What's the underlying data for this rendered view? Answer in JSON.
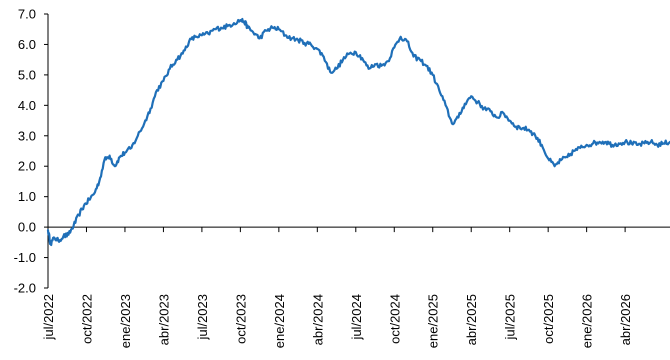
{
  "chart_data": {
    "type": "line",
    "title": "",
    "xlabel": "",
    "ylabel": "",
    "ylim": [
      -2.0,
      7.0
    ],
    "y_ticks": [
      "7.0",
      "6.0",
      "5.0",
      "4.0",
      "3.0",
      "2.0",
      "1.0",
      "0.0",
      "-1.0",
      "-2.0"
    ],
    "y_tick_values": [
      7,
      6,
      5,
      4,
      3,
      2,
      1,
      0,
      -1,
      -2
    ],
    "x_ticks": [
      "jul/2022",
      "oct/2022",
      "ene/2023",
      "abr/2023",
      "jul/2023",
      "oct/2023",
      "ene/2024",
      "abr/2024",
      "jul/2024",
      "oct/2024",
      "ene/2025",
      "abr/2025",
      "jul/2025",
      "oct/2025",
      "ene/2026",
      "abr/2026"
    ],
    "x_tick_months": [
      0,
      3,
      6,
      9,
      12,
      15,
      18,
      21,
      24,
      27,
      30,
      33,
      36,
      39,
      42,
      45
    ],
    "x_range_months": [
      0,
      48.5
    ],
    "grid": false,
    "legend": "none",
    "colors": {
      "series": "#1F6FB8"
    },
    "series": [
      {
        "x": [
          0,
          0.2,
          0.5,
          0.8,
          1.2,
          1.6,
          2.0,
          2.4,
          2.8,
          3.2,
          3.6,
          4.0,
          4.4,
          4.8,
          5.2,
          5.6,
          6.0,
          6.5,
          7.0,
          7.5,
          8.0,
          8.5,
          9.0,
          9.5,
          10.0,
          10.5,
          11.0,
          11.5,
          12.0,
          12.5,
          13.0,
          13.5,
          14.0,
          14.5,
          15.0,
          15.3,
          15.6,
          16.0,
          16.5,
          17.0,
          17.5,
          18.0,
          18.5,
          19.0,
          19.5,
          20.0,
          20.5,
          21.0,
          21.5,
          22.0,
          22.5,
          23.0,
          23.5,
          24.0,
          24.5,
          25.0,
          25.5,
          26.0,
          26.5,
          27.0,
          27.5,
          28.0,
          28.5,
          29.0,
          29.5,
          30.0,
          30.5,
          31.0,
          31.5,
          32.0,
          32.5,
          33.0,
          33.5,
          34.0,
          34.5,
          35.0,
          35.5,
          36.0,
          36.5,
          37.0,
          37.5,
          38.0,
          38.5,
          39.0,
          39.5,
          40.0,
          40.5,
          41.0,
          41.5,
          42.0,
          42.5,
          43.0,
          43.5,
          44.0,
          44.5,
          45.0,
          45.5,
          46.0,
          46.5,
          47.0,
          47.5,
          48.0,
          48.5
        ],
        "y": [
          -0.1,
          -0.55,
          -0.35,
          -0.45,
          -0.3,
          -0.25,
          0.05,
          0.4,
          0.7,
          0.9,
          1.1,
          1.5,
          2.2,
          2.35,
          2.0,
          2.3,
          2.45,
          2.6,
          3.0,
          3.4,
          3.9,
          4.5,
          4.8,
          5.2,
          5.5,
          5.7,
          6.1,
          6.25,
          6.3,
          6.35,
          6.5,
          6.55,
          6.6,
          6.7,
          6.8,
          6.75,
          6.55,
          6.4,
          6.2,
          6.45,
          6.55,
          6.5,
          6.3,
          6.2,
          6.15,
          6.05,
          6.0,
          5.85,
          5.6,
          5.1,
          5.2,
          5.5,
          5.7,
          5.75,
          5.55,
          5.2,
          5.35,
          5.3,
          5.45,
          5.9,
          6.25,
          6.1,
          5.6,
          5.5,
          5.3,
          5.0,
          4.5,
          4.0,
          3.4,
          3.6,
          4.05,
          4.3,
          4.1,
          3.9,
          3.8,
          3.6,
          3.75,
          3.5,
          3.3,
          3.25,
          3.2,
          3.0,
          2.7,
          2.25,
          2.0,
          2.2,
          2.3,
          2.5,
          2.6,
          2.7,
          2.75,
          2.8,
          2.8,
          2.7,
          2.75,
          2.8,
          2.75,
          2.7,
          2.75,
          2.8,
          2.7,
          2.75,
          2.8
        ]
      }
    ]
  }
}
